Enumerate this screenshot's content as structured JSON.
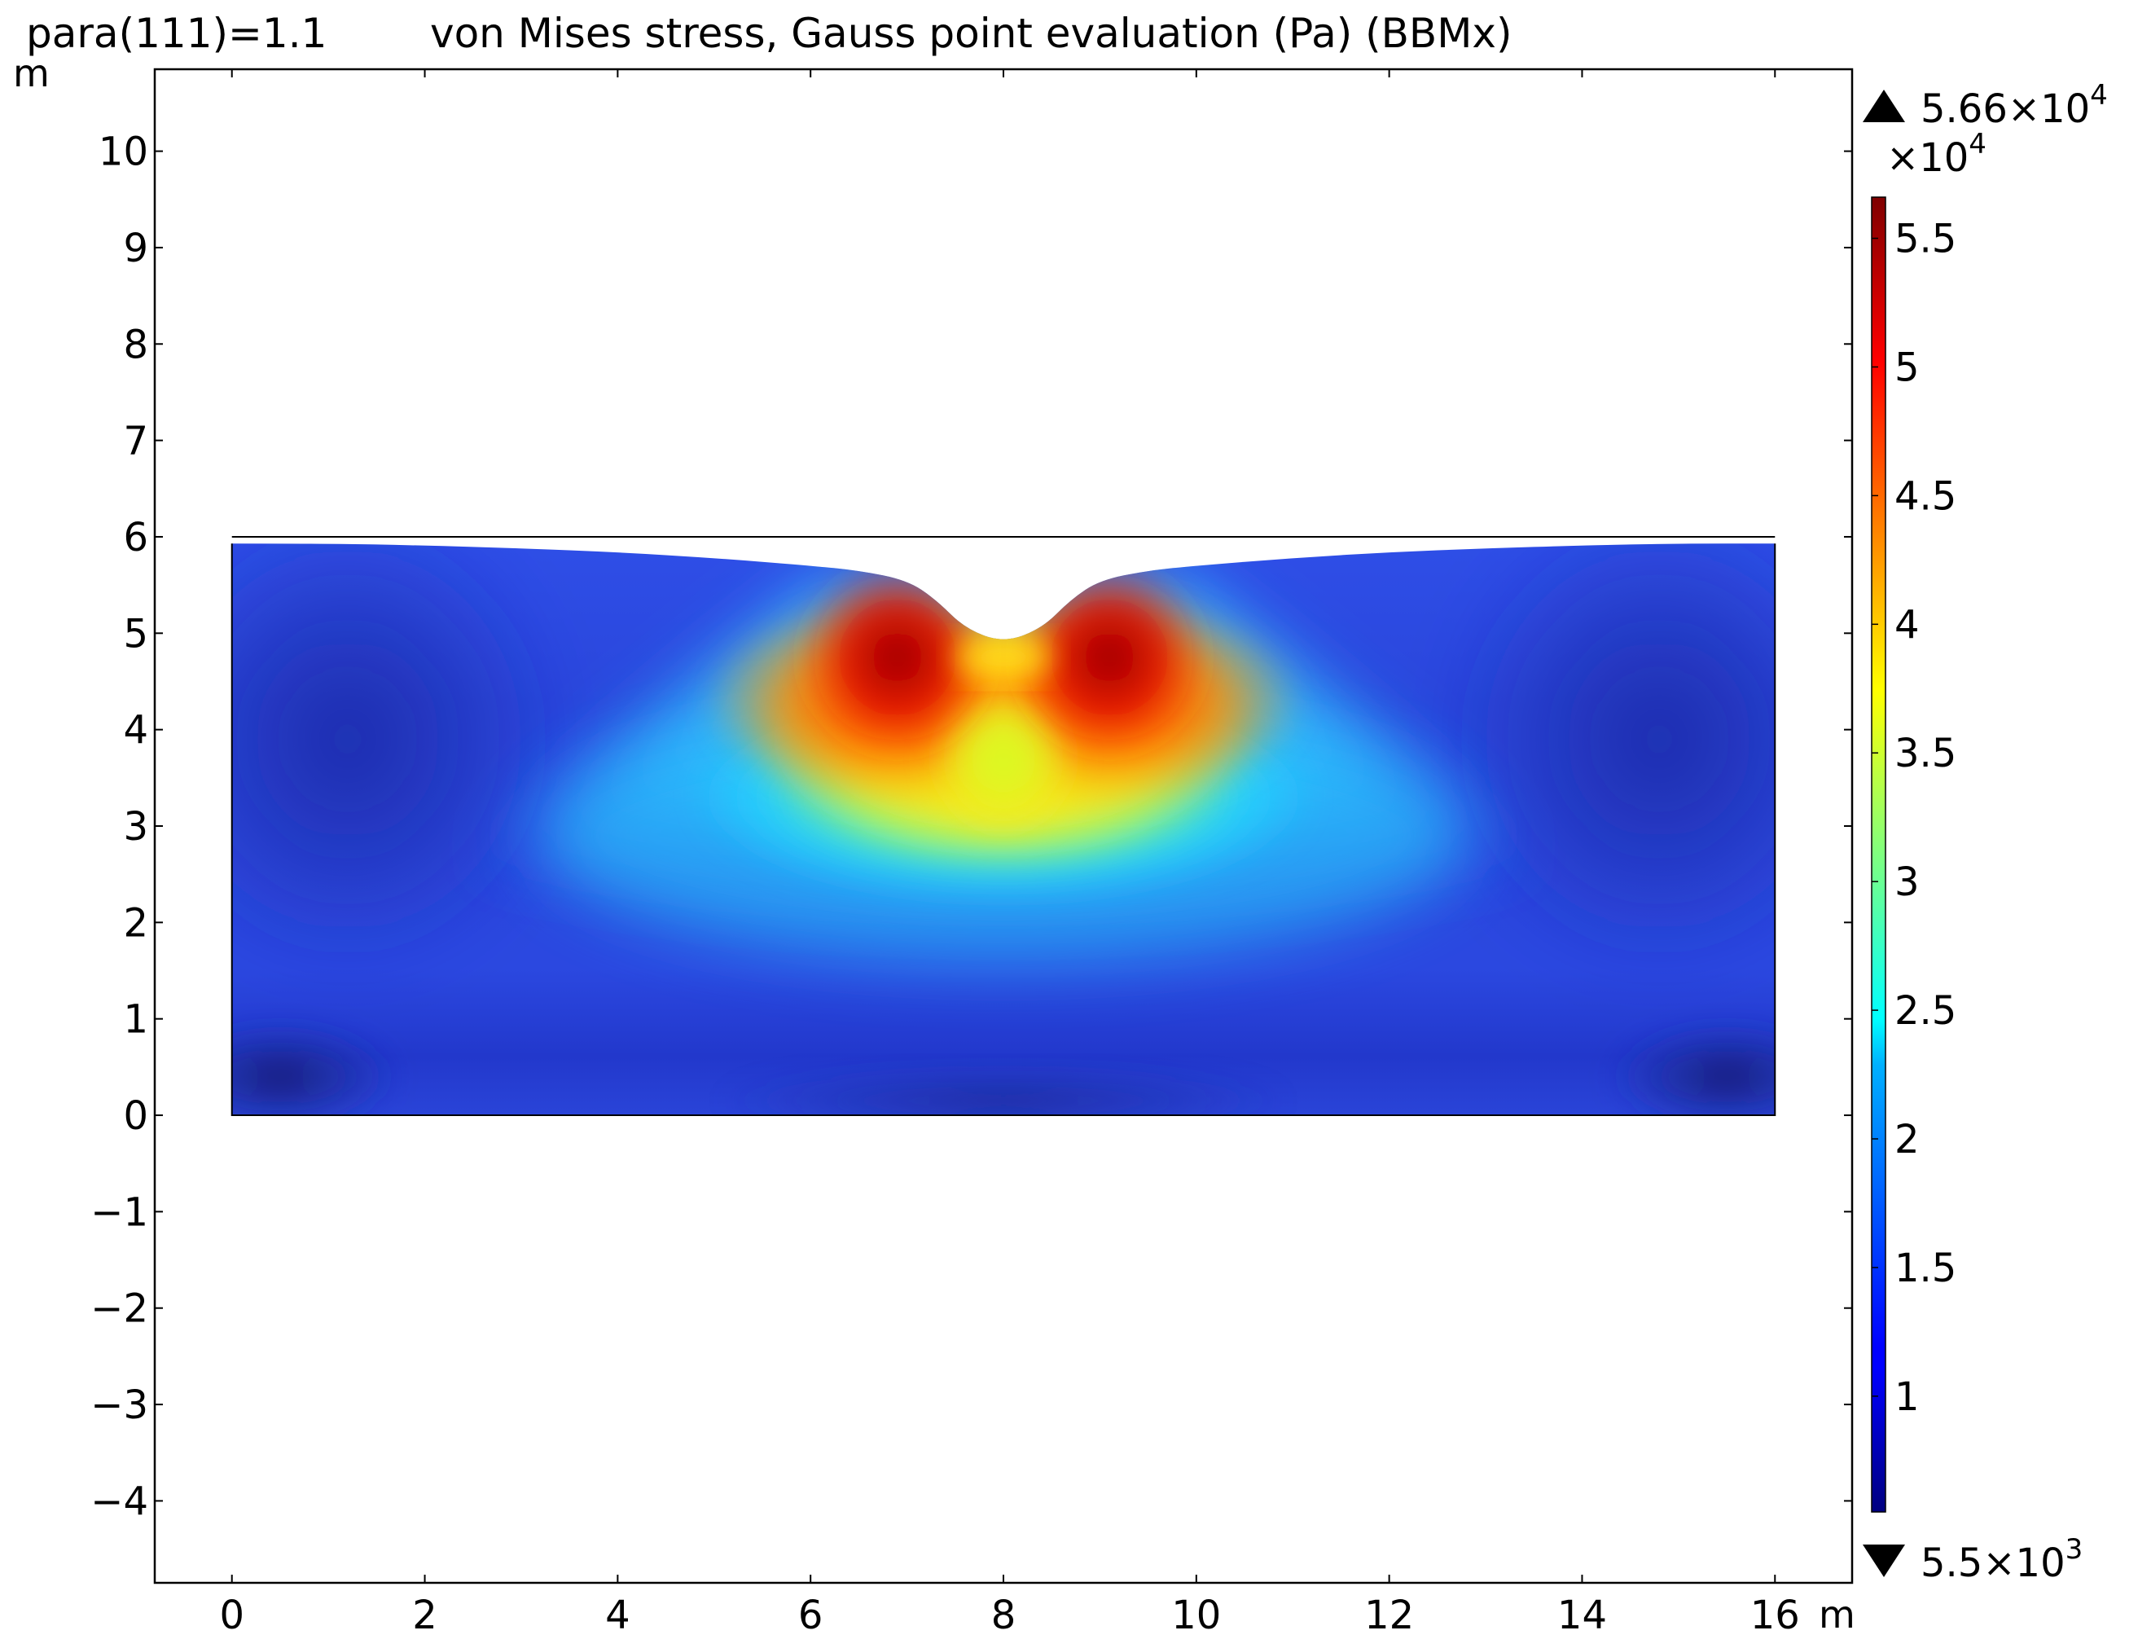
{
  "header": {
    "param_label": "para(111)=1.1",
    "title": "von Mises stress, Gauss point evaluation (Pa) (BBMx)"
  },
  "chart_data": {
    "type": "heatmap",
    "title": "von Mises stress, Gauss point evaluation (Pa) (BBMx)",
    "parameter": "para(111)=1.1",
    "xlabel": "m",
    "ylabel": "m",
    "xlim": [
      -0.8,
      16.8
    ],
    "ylim": [
      -4.85,
      10.85
    ],
    "x_ticks": [
      0,
      2,
      4,
      6,
      8,
      10,
      12,
      14,
      16
    ],
    "x_tick_labels": [
      "0",
      "2",
      "4",
      "6",
      "8",
      "10",
      "12",
      "14",
      "16"
    ],
    "y_ticks": [
      -4,
      -3,
      -2,
      -1,
      0,
      1,
      2,
      3,
      4,
      5,
      6,
      7,
      8,
      9,
      10
    ],
    "y_tick_labels": [
      "−4",
      "−3",
      "−2",
      "−1",
      "0",
      "1",
      "2",
      "3",
      "4",
      "5",
      "6",
      "7",
      "8",
      "9",
      "10"
    ],
    "domain": {
      "x_range": [
        0,
        16
      ],
      "y_range": [
        0,
        6
      ],
      "deformed_top_surface": [
        [
          0,
          5.93
        ],
        [
          1,
          5.93
        ],
        [
          2,
          5.91
        ],
        [
          3,
          5.88
        ],
        [
          4,
          5.84
        ],
        [
          5,
          5.78
        ],
        [
          6,
          5.7
        ],
        [
          6.5,
          5.65
        ],
        [
          7,
          5.55
        ],
        [
          7.3,
          5.35
        ],
        [
          7.6,
          5.05
        ],
        [
          8,
          4.9
        ],
        [
          8.4,
          5.05
        ],
        [
          8.7,
          5.35
        ],
        [
          9,
          5.55
        ],
        [
          9.5,
          5.65
        ],
        [
          10,
          5.7
        ],
        [
          11,
          5.78
        ],
        [
          12,
          5.84
        ],
        [
          13,
          5.88
        ],
        [
          14,
          5.91
        ],
        [
          15,
          5.93
        ],
        [
          16,
          5.93
        ]
      ]
    },
    "stress_hotspots": [
      {
        "x": 6.9,
        "y": 5.0,
        "value": 56600
      },
      {
        "x": 9.1,
        "y": 5.0,
        "value": 56600
      },
      {
        "x": 8.0,
        "y": 3.8,
        "value": 38000
      }
    ],
    "colorbar": {
      "colormap": "jet",
      "min": 5500,
      "max": 56600,
      "multiplier_label": "×10",
      "multiplier_exp": "4",
      "tick_values": [
        1,
        1.5,
        2,
        2.5,
        3,
        3.5,
        4,
        4.5,
        5,
        5.5
      ],
      "tick_labels": [
        "1",
        "1.5",
        "2",
        "2.5",
        "3",
        "3.5",
        "4",
        "4.5",
        "5",
        "5.5"
      ],
      "max_label": "5.66×10",
      "max_exp": "4",
      "min_label": "5.5×10",
      "min_exp": "3"
    }
  }
}
